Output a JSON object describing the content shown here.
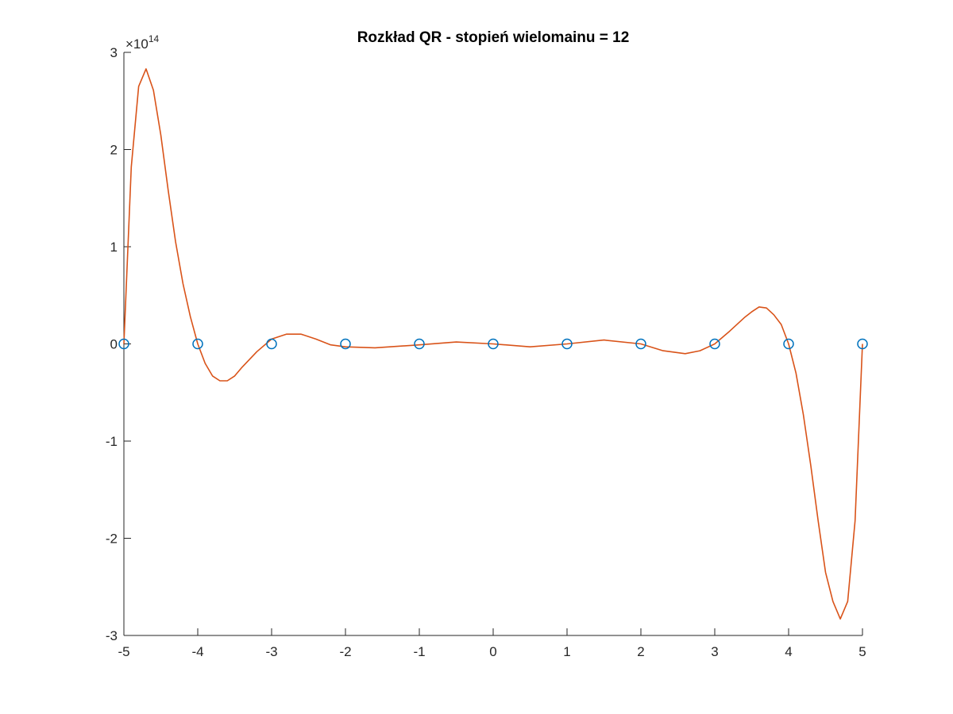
{
  "chart_data": {
    "type": "line",
    "title": "Rozkład QR - stopień wielomainu = 12",
    "xlabel": "",
    "ylabel": "",
    "xlim": [
      -5,
      5
    ],
    "ylim": [
      -3,
      3
    ],
    "x_ticks": [
      "-5",
      "-4",
      "-3",
      "-2",
      "-1",
      "0",
      "1",
      "2",
      "3",
      "4",
      "5"
    ],
    "y_ticks": [
      "-3",
      "-2",
      "-1",
      "0",
      "1",
      "2",
      "3"
    ],
    "y_exponent": {
      "base": "×10",
      "power": "14"
    },
    "grid": false,
    "series": [
      {
        "kind": "markers",
        "marker": "circle",
        "color": "#0072BD",
        "x": [
          -5,
          -4,
          -3,
          -2,
          -1,
          0,
          1,
          2,
          3,
          4,
          5
        ],
        "y": [
          0,
          0,
          0,
          0,
          0,
          0,
          0,
          0,
          0,
          0,
          0
        ]
      },
      {
        "kind": "line",
        "color": "#D95319",
        "x": [
          -5,
          -4.9,
          -4.8,
          -4.7,
          -4.6,
          -4.5,
          -4.4,
          -4.3,
          -4.2,
          -4.1,
          -4.0,
          -3.9,
          -3.8,
          -3.7,
          -3.6,
          -3.5,
          -3.4,
          -3.2,
          -3.0,
          -2.8,
          -2.6,
          -2.4,
          -2.2,
          -2.0,
          -1.6,
          -1.0,
          -0.5,
          0.0,
          0.5,
          1.0,
          1.5,
          2.0,
          2.3,
          2.6,
          2.8,
          3.0,
          3.2,
          3.4,
          3.5,
          3.6,
          3.7,
          3.8,
          3.9,
          4.0,
          4.1,
          4.2,
          4.3,
          4.4,
          4.5,
          4.6,
          4.7,
          4.8,
          4.9,
          5.0
        ],
        "y": [
          0,
          1.82,
          2.65,
          2.83,
          2.61,
          2.15,
          1.58,
          1.05,
          0.62,
          0.28,
          0.0,
          -0.2,
          -0.33,
          -0.38,
          -0.38,
          -0.33,
          -0.24,
          -0.08,
          0.05,
          0.1,
          0.1,
          0.05,
          -0.01,
          -0.03,
          -0.04,
          -0.01,
          0.02,
          0.0,
          -0.03,
          0.0,
          0.04,
          0.0,
          -0.07,
          -0.1,
          -0.07,
          0.0,
          0.13,
          0.27,
          0.33,
          0.38,
          0.37,
          0.3,
          0.2,
          0.0,
          -0.3,
          -0.73,
          -1.25,
          -1.82,
          -2.35,
          -2.65,
          -2.83,
          -2.65,
          -1.82,
          0
        ]
      }
    ]
  }
}
